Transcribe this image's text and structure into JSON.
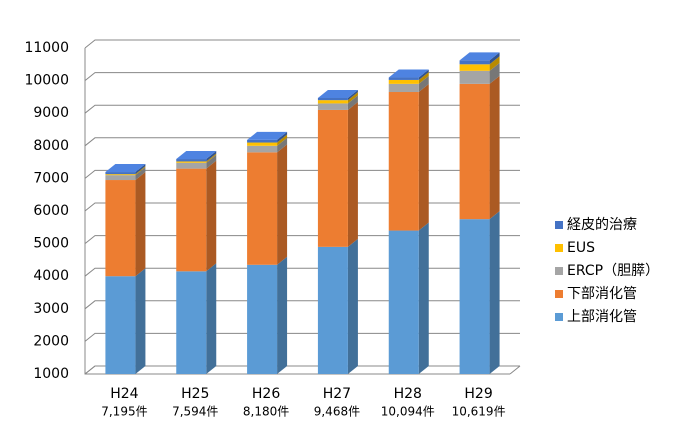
{
  "chart_data": {
    "type": "bar3d_stacked",
    "categories": [
      "H24",
      "H25",
      "H26",
      "H27",
      "H28",
      "H29"
    ],
    "total_labels": [
      "7,195件",
      "7,594件",
      "8,180件",
      "9,468件",
      "10,094件",
      "10,619件"
    ],
    "series": [
      {
        "name": "上部消化管",
        "color": "#5b9bd5",
        "values": [
          4000,
          4150,
          4350,
          4900,
          5400,
          5750
        ]
      },
      {
        "name": "下部消化管",
        "color": "#ed7d31",
        "values": [
          2950,
          3150,
          3450,
          4200,
          4250,
          4150
        ]
      },
      {
        "name": "ERCP（胆膵）",
        "color": "#a5a5a5",
        "values": [
          150,
          180,
          200,
          200,
          250,
          400
        ]
      },
      {
        "name": "EUS",
        "color": "#ffc000",
        "values": [
          30,
          40,
          100,
          100,
          120,
          200
        ]
      },
      {
        "name": "経皮的治療",
        "color": "#4472c4",
        "values": [
          65,
          74,
          80,
          68,
          74,
          119
        ]
      }
    ],
    "ylim": [
      1000,
      11000
    ],
    "yticks": [
      1000,
      2000,
      3000,
      4000,
      5000,
      6000,
      7000,
      8000,
      9000,
      10000,
      11000
    ],
    "grid": true,
    "legend": "right"
  }
}
